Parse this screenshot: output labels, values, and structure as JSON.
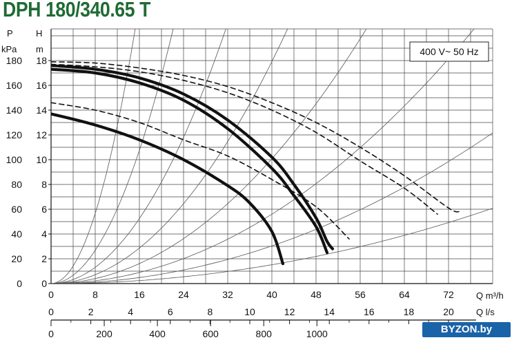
{
  "chart_data": {
    "type": "line",
    "title": "DPH 180/340.65 T",
    "annotation": "400 V~ 50 Hz",
    "watermark": "BYZON.by",
    "y_left": {
      "label_top": "P",
      "label_bottom": "kPa",
      "ticks": [
        "0",
        "20",
        "40",
        "60",
        "80",
        "100",
        "120",
        "140",
        "160",
        "180"
      ]
    },
    "y_right_of_left": {
      "label_top": "H",
      "label_bottom": "m",
      "ticks": [
        "0",
        "2",
        "4",
        "6",
        "8",
        "10",
        "12",
        "14",
        "16",
        "18"
      ]
    },
    "x_primary": {
      "label": "Q m³/h",
      "ticks": [
        "0",
        "8",
        "16",
        "24",
        "32",
        "40",
        "48",
        "56",
        "64",
        "72"
      ],
      "range": [
        0,
        80
      ]
    },
    "x_secondary_ls": {
      "label": "Q l/s",
      "ticks": [
        "0",
        "2",
        "4",
        "6",
        "8",
        "10",
        "12",
        "14",
        "16",
        "18",
        "20"
      ]
    },
    "x_tertiary": {
      "ticks": [
        "0",
        "200",
        "400",
        "600",
        "800",
        "1000"
      ]
    },
    "ylim_m": [
      0,
      18
    ],
    "series": [
      {
        "style": "solid-bold",
        "points": [
          [
            0,
            17.6
          ],
          [
            8,
            17.3
          ],
          [
            16,
            16.6
          ],
          [
            24,
            15.3
          ],
          [
            32,
            13.2
          ],
          [
            40,
            10.2
          ],
          [
            44,
            8.0
          ],
          [
            48,
            5.3
          ],
          [
            50,
            3.4
          ],
          [
            51,
            2.8
          ]
        ]
      },
      {
        "style": "solid-bold",
        "points": [
          [
            0,
            17.3
          ],
          [
            8,
            17.0
          ],
          [
            16,
            16.2
          ],
          [
            24,
            14.8
          ],
          [
            32,
            12.5
          ],
          [
            40,
            9.3
          ],
          [
            44,
            7.1
          ],
          [
            48,
            4.6
          ],
          [
            50,
            2.5
          ]
        ]
      },
      {
        "style": "solid-bold",
        "points": [
          [
            0,
            13.7
          ],
          [
            8,
            12.8
          ],
          [
            16,
            11.6
          ],
          [
            24,
            10.0
          ],
          [
            32,
            7.9
          ],
          [
            36,
            6.5
          ],
          [
            40,
            4.2
          ],
          [
            42,
            1.6
          ]
        ]
      },
      {
        "style": "dashed",
        "points": [
          [
            0,
            17.9
          ],
          [
            8,
            17.8
          ],
          [
            16,
            17.4
          ],
          [
            24,
            16.8
          ],
          [
            32,
            15.9
          ],
          [
            40,
            14.6
          ],
          [
            48,
            13.0
          ],
          [
            56,
            11.0
          ],
          [
            64,
            8.7
          ],
          [
            72,
            6.1
          ],
          [
            74,
            5.8
          ]
        ]
      },
      {
        "style": "dashed",
        "points": [
          [
            0,
            17.7
          ],
          [
            8,
            17.5
          ],
          [
            16,
            17.1
          ],
          [
            24,
            16.4
          ],
          [
            32,
            15.4
          ],
          [
            40,
            14.0
          ],
          [
            48,
            12.2
          ],
          [
            56,
            9.9
          ],
          [
            64,
            7.7
          ],
          [
            70,
            5.6
          ]
        ]
      },
      {
        "style": "dashed",
        "points": [
          [
            0,
            14.6
          ],
          [
            8,
            14.0
          ],
          [
            16,
            13.0
          ],
          [
            24,
            11.6
          ],
          [
            32,
            10.3
          ],
          [
            40,
            8.4
          ],
          [
            48,
            6.2
          ],
          [
            54,
            3.6
          ]
        ]
      }
    ]
  }
}
